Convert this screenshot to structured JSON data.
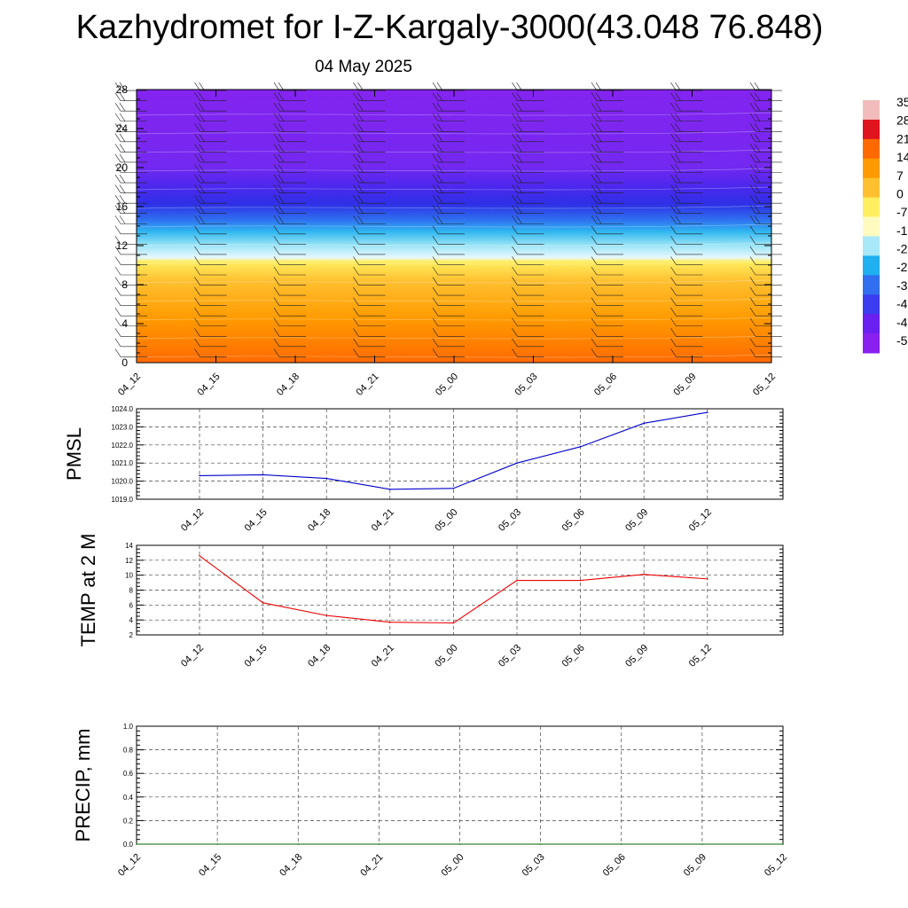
{
  "header": {
    "title": "Kazhydromet for I-Z-Kargaly-3000(43.048 76.848)",
    "date": "04 May 2025"
  },
  "time_labels": [
    "04_12",
    "04_15",
    "04_18",
    "04_21",
    "05_00",
    "05_03",
    "05_06",
    "05_09",
    "05_12"
  ],
  "chart_data": [
    {
      "type": "heatmap",
      "panel": "cross-section",
      "x": [
        "04_12",
        "04_15",
        "04_18",
        "04_21",
        "05_00",
        "05_03",
        "05_06",
        "05_09",
        "05_12"
      ],
      "y_ticks": [
        "0",
        "4",
        "8",
        "12",
        "16",
        "20",
        "24",
        "28"
      ],
      "ylim": [
        0,
        28
      ],
      "colorbar_labels": [
        "35",
        "28",
        "21",
        "14",
        "7",
        "0",
        "-7",
        "-1",
        "-2",
        "-2",
        "-3",
        "-4",
        "-4",
        "-5"
      ],
      "colorbar_colors": [
        "#f2bcbc",
        "#e0141e",
        "#ff6a00",
        "#ff9a00",
        "#ffc030",
        "#ffee60",
        "#fffac0",
        "#a8e8f8",
        "#20b0f0",
        "#3070f0",
        "#3c3cf0",
        "#6a20f0",
        "#8a20f0"
      ],
      "wind_barbs": true
    },
    {
      "type": "line",
      "ylabel": "PMSL",
      "x": [
        "04_12",
        "04_15",
        "04_18",
        "04_21",
        "05_00",
        "05_03",
        "05_06",
        "05_09",
        "05_12"
      ],
      "values": [
        1020.3,
        1020.35,
        1020.15,
        1019.55,
        1019.6,
        1021.0,
        1021.9,
        1023.2,
        1023.8
      ],
      "y_ticks": [
        "1019.0",
        "1020.0",
        "1021.0",
        "1022.0",
        "1023.0",
        "1024.0"
      ],
      "ylim": [
        1019,
        1024
      ],
      "color": "#0000cc",
      "grid": true
    },
    {
      "type": "line",
      "ylabel": "TEMP at 2 M",
      "x": [
        "04_12",
        "04_15",
        "04_18",
        "04_21",
        "05_00",
        "05_03",
        "05_06",
        "05_09",
        "05_12"
      ],
      "values": [
        12.6,
        6.3,
        4.6,
        3.7,
        3.6,
        9.3,
        9.3,
        10.1,
        9.5
      ],
      "y_ticks": [
        "2",
        "4",
        "6",
        "8",
        "10",
        "12",
        "14"
      ],
      "ylim": [
        2,
        14
      ],
      "color": "#ee0000",
      "grid": true
    },
    {
      "type": "line",
      "ylabel": "PRECIP, mm",
      "x": [
        "04_12",
        "04_15",
        "04_18",
        "04_21",
        "05_00",
        "05_03",
        "05_06",
        "05_09",
        "05_12"
      ],
      "values": [
        0,
        0,
        0,
        0,
        0,
        0,
        0,
        0,
        0
      ],
      "y_ticks": [
        "0.0",
        "0.2",
        "0.4",
        "0.6",
        "0.8",
        "1.0"
      ],
      "ylim": [
        0,
        1
      ],
      "color": "#006400",
      "grid": true
    }
  ]
}
